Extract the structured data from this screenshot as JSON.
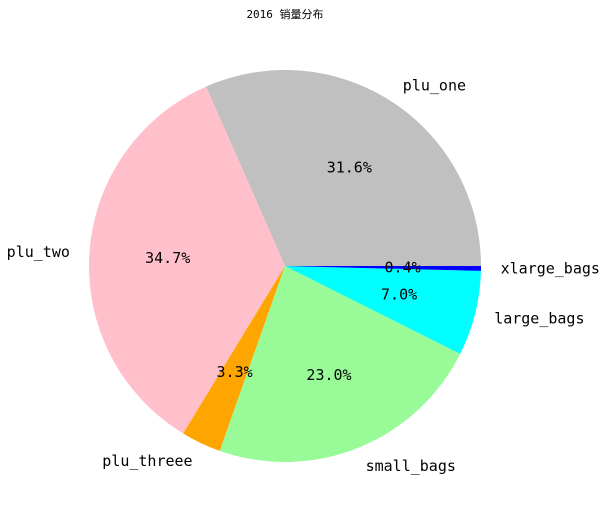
{
  "chart_data": {
    "type": "pie",
    "title": "2016 销量分布",
    "start_angle_deg": 0,
    "direction": "counterclockwise",
    "slices": [
      {
        "label": "plu_one",
        "value": 31.6,
        "pct_label": "31.6%",
        "color": "#c0c0c0"
      },
      {
        "label": "plu_two",
        "value": 34.7,
        "pct_label": "34.7%",
        "color": "#ffc0cb"
      },
      {
        "label": "plu_threee",
        "value": 3.3,
        "pct_label": "3.3%",
        "color": "#ffa500"
      },
      {
        "label": "small_bags",
        "value": 23.0,
        "pct_label": "23.0%",
        "color": "#98fb98"
      },
      {
        "label": "large_bags",
        "value": 7.0,
        "pct_label": "7.0%",
        "color": "#00ffff"
      },
      {
        "label": "xlarge_bags",
        "value": 0.4,
        "pct_label": "0.4%",
        "color": "#0000ff"
      }
    ]
  }
}
